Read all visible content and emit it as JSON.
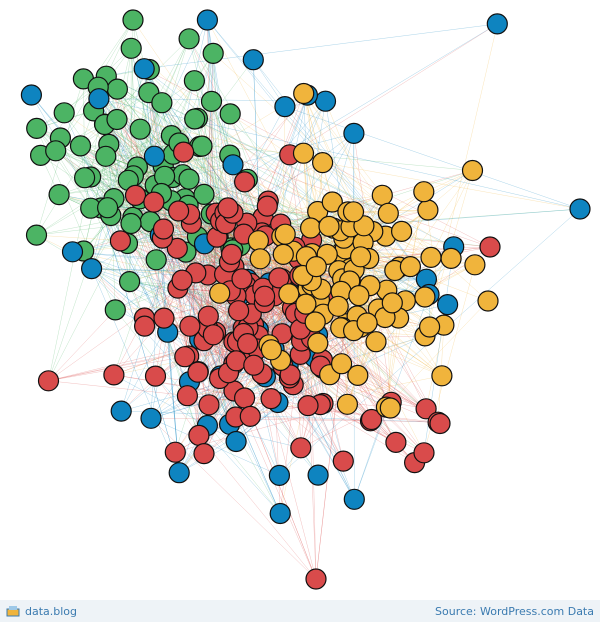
{
  "footer": {
    "brand": "data.blog",
    "source": "Source: WordPress.com Data"
  }
}
